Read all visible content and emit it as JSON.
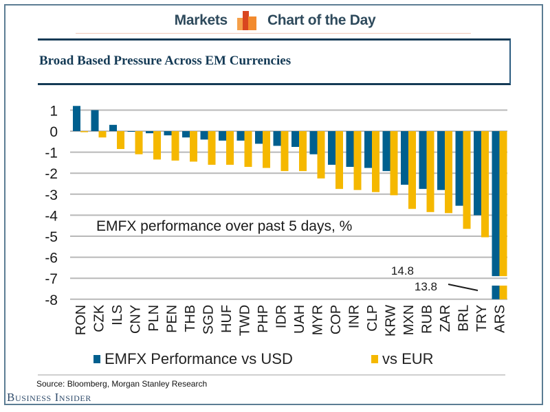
{
  "header": {
    "left_label": "Markets",
    "right_label": "Chart of the Day",
    "logo_icon": "bar-chart-logo-icon",
    "logo_colors": [
      "#f5a04a",
      "#d9461f",
      "#f28a2e"
    ]
  },
  "colors": {
    "usd": "#005f8e",
    "eur": "#f5b800",
    "grid": "#b8b8b8",
    "title": "#143a55"
  },
  "chart_data": {
    "type": "bar",
    "title": "Broad Based Pressure Across EM Currencies",
    "annotation": "EMFX performance over past 5 days, %",
    "xlabel": "",
    "ylabel": "",
    "ylim": [
      -8,
      1
    ],
    "yticks": [
      1,
      0,
      -1,
      -2,
      -3,
      -4,
      -5,
      -6,
      -7,
      -8
    ],
    "grid": true,
    "legend_position": "bottom",
    "axis_break": {
      "category": "ARS",
      "labels": [
        "14.8",
        "13.8"
      ]
    },
    "categories": [
      "RON",
      "CZK",
      "ILS",
      "CNY",
      "PLN",
      "PEN",
      "THB",
      "SGD",
      "HUF",
      "TWD",
      "PHP",
      "IDR",
      "UAH",
      "MYR",
      "COP",
      "INR",
      "CLP",
      "KRW",
      "MXN",
      "RUB",
      "ZAR",
      "BRL",
      "TRY",
      "ARS"
    ],
    "series": [
      {
        "name": "EMFX Performance vs USD",
        "color": "#005f8e",
        "values": [
          1.2,
          1.0,
          0.3,
          0.0,
          -0.1,
          -0.2,
          -0.3,
          -0.4,
          -0.45,
          -0.45,
          -0.6,
          -0.7,
          -0.75,
          -1.1,
          -1.6,
          -1.7,
          -1.75,
          -1.9,
          -2.55,
          -2.75,
          -2.8,
          -3.55,
          -4.0,
          -14.8
        ]
      },
      {
        "name": "vs EUR",
        "color": "#f5b800",
        "values": [
          -0.05,
          -0.3,
          -0.85,
          -1.1,
          -1.35,
          -1.4,
          -1.45,
          -1.6,
          -1.6,
          -1.7,
          -1.75,
          -1.9,
          -1.9,
          -2.25,
          -2.75,
          -2.8,
          -2.9,
          -3.05,
          -3.7,
          -3.85,
          -3.9,
          -4.65,
          -5.05,
          -13.8
        ]
      }
    ]
  },
  "legend": {
    "usd_label": "EMFX Performance vs USD",
    "eur_label": "vs EUR"
  },
  "footer": {
    "source": "Source: Bloomberg, Morgan Stanley Research",
    "brand": "Business Insider"
  }
}
